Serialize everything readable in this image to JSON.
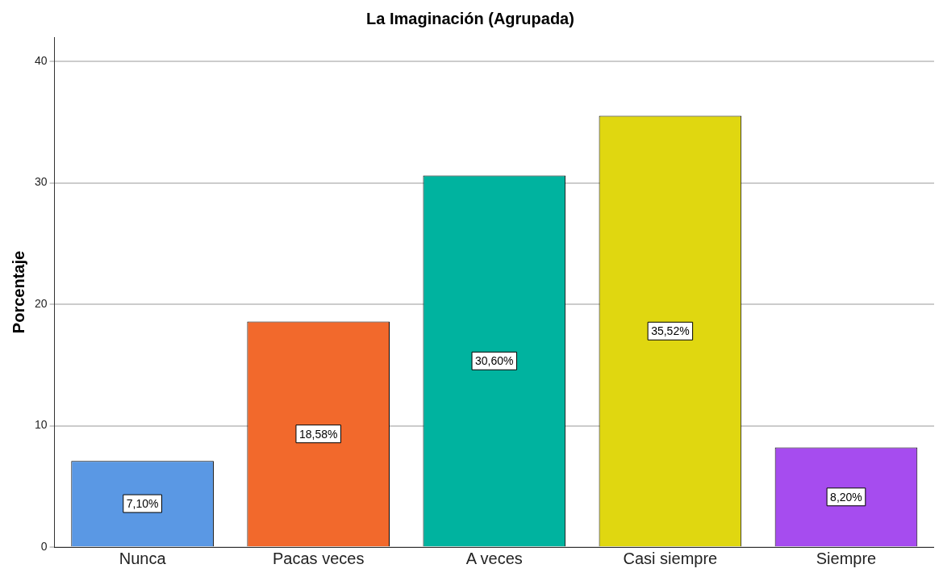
{
  "chart_data": {
    "type": "bar",
    "title": "La Imaginación (Agrupada)",
    "ylabel": "Porcentaje",
    "categories": [
      "Nunca",
      "Pacas veces",
      "A veces",
      "Casi siempre",
      "Siempre"
    ],
    "values": [
      7.1,
      18.58,
      30.6,
      35.52,
      8.2
    ],
    "colors": [
      "#5a98e4",
      "#f2692c",
      "#00b39f",
      "#e0d710",
      "#a64cef"
    ],
    "value_labels": [
      "7,10%",
      "18,58%",
      "30,60%",
      "35,52%",
      "8,20%"
    ],
    "ylim": [
      0,
      42
    ],
    "yticks": [
      0,
      10,
      20,
      30,
      40
    ],
    "grid": "y",
    "legend": false
  }
}
